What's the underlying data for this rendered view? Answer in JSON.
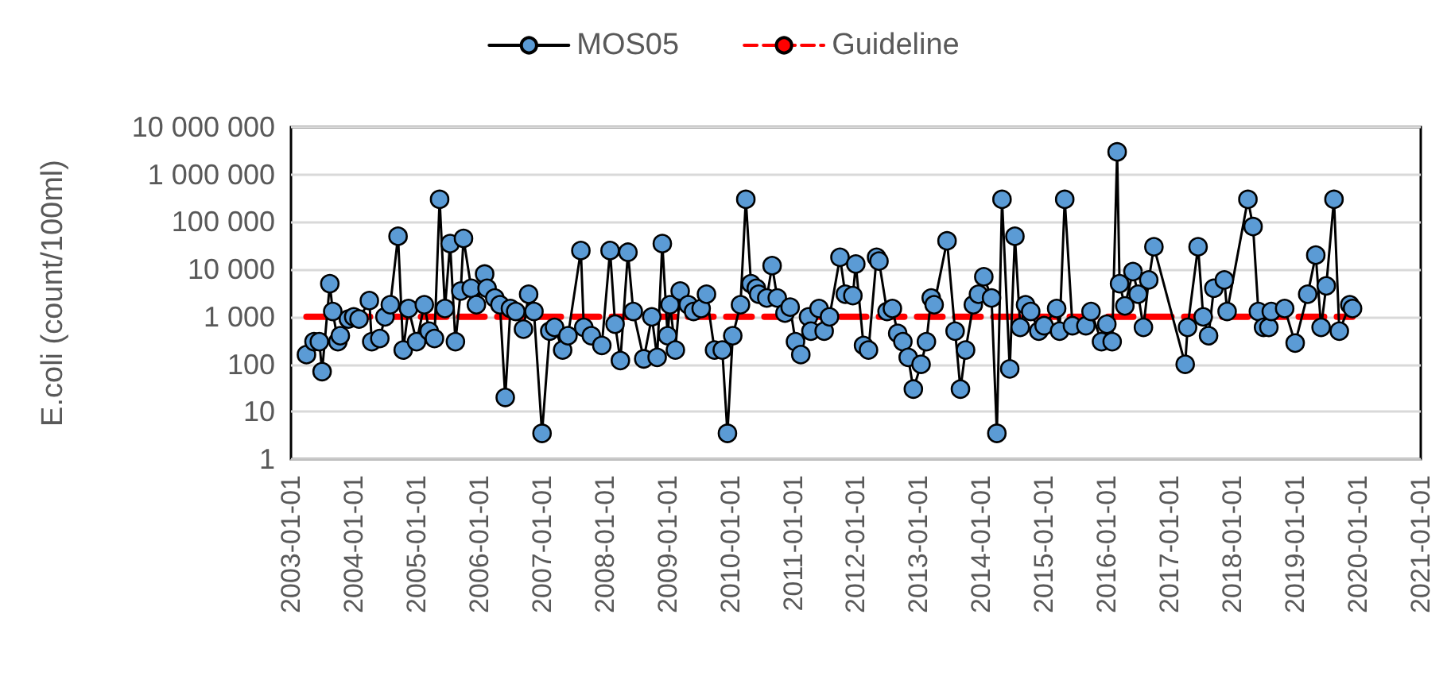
{
  "chart_data": {
    "type": "line",
    "ylabel": "E.coli (count/100ml)",
    "log": "y",
    "grid": "y",
    "legend": "top",
    "marker": "circle",
    "xlim": [
      "2003-01-01",
      "2021-01-01"
    ],
    "xticks": [
      "2003-01-01",
      "2004-01-01",
      "2005-01-01",
      "2006-01-01",
      "2007-01-01",
      "2008-01-01",
      "2009-01-01",
      "2010-01-01",
      "2011-01-01",
      "2012-01-01",
      "2013-01-01",
      "2014-01-01",
      "2015-01-01",
      "2016-01-01",
      "2017-01-01",
      "2018-01-01",
      "2019-01-01",
      "2020-01-01",
      "2021-01-01"
    ],
    "ylim": [
      1,
      10000000
    ],
    "yticks": [
      1,
      10,
      100,
      {
        "value": 1000,
        "label": "1 000"
      },
      {
        "value": 10000,
        "label": "10 000"
      },
      {
        "value": 100000,
        "label": "100 000"
      },
      {
        "value": 1000000,
        "label": "1 000 000"
      },
      {
        "value": 10000000,
        "label": "10 000 000"
      }
    ],
    "series": [
      {
        "name": "MOS05",
        "color": "#5b9bd5",
        "line_style": "solid",
        "x": [
          "2003-04-01",
          "2003-05-15",
          "2003-06-15",
          "2003-07-01",
          "2003-08-15",
          "2003-09-01",
          "2003-10-01",
          "2003-10-15",
          "2003-12-01",
          "2004-01-01",
          "2004-02-01",
          "2004-04-01",
          "2004-04-15",
          "2004-06-01",
          "2004-07-01",
          "2004-08-01",
          "2004-09-15",
          "2004-10-15",
          "2004-11-15",
          "2005-01-01",
          "2005-02-15",
          "2005-03-15",
          "2005-04-15",
          "2005-05-15",
          "2005-06-15",
          "2005-07-15",
          "2005-08-15",
          "2005-09-15",
          "2005-10-01",
          "2005-11-15",
          "2005-12-15",
          "2006-02-01",
          "2006-02-15",
          "2006-04-01",
          "2006-05-01",
          "2006-06-01",
          "2006-07-01",
          "2006-08-01",
          "2006-09-15",
          "2006-10-15",
          "2006-11-15",
          "2007-01-01",
          "2007-02-15",
          "2007-03-15",
          "2007-05-01",
          "2007-06-01",
          "2007-08-15",
          "2007-09-01",
          "2007-10-15",
          "2007-12-15",
          "2008-02-01",
          "2008-03-01",
          "2008-04-01",
          "2008-05-15",
          "2008-06-15",
          "2008-08-15",
          "2008-10-01",
          "2008-11-01",
          "2008-12-01",
          "2009-01-01",
          "2009-01-15",
          "2009-02-15",
          "2009-03-15",
          "2009-05-01",
          "2009-06-01",
          "2009-07-15",
          "2009-08-15",
          "2009-10-01",
          "2009-11-15",
          "2009-12-15",
          "2010-01-15",
          "2010-03-01",
          "2010-04-01",
          "2010-05-01",
          "2010-06-01",
          "2010-06-15",
          "2010-08-01",
          "2010-09-01",
          "2010-10-01",
          "2010-11-15",
          "2010-12-15",
          "2011-01-15",
          "2011-02-15",
          "2011-04-01",
          "2011-04-15",
          "2011-06-01",
          "2011-07-01",
          "2011-08-01",
          "2011-10-01",
          "2011-11-01",
          "2011-12-15",
          "2012-01-01",
          "2012-02-15",
          "2012-03-15",
          "2012-05-01",
          "2012-05-15",
          "2012-07-01",
          "2012-08-01",
          "2012-09-01",
          "2012-10-01",
          "2012-11-01",
          "2012-12-01",
          "2013-01-15",
          "2013-02-15",
          "2013-03-15",
          "2013-04-01",
          "2013-06-15",
          "2013-08-01",
          "2013-09-01",
          "2013-10-01",
          "2013-11-15",
          "2013-12-15",
          "2014-01-15",
          "2014-03-01",
          "2014-04-01",
          "2014-05-01",
          "2014-06-15",
          "2014-07-15",
          "2014-08-15",
          "2014-09-15",
          "2014-10-15",
          "2014-12-01",
          "2015-01-01",
          "2015-03-15",
          "2015-04-01",
          "2015-05-01",
          "2015-06-15",
          "2015-09-01",
          "2015-10-01",
          "2015-12-01",
          "2016-01-01",
          "2016-02-01",
          "2016-03-01",
          "2016-03-15",
          "2016-04-15",
          "2016-06-01",
          "2016-07-01",
          "2016-08-01",
          "2016-09-01",
          "2016-10-01",
          "2017-04-01",
          "2017-04-15",
          "2017-06-15",
          "2017-07-15",
          "2017-08-15",
          "2017-09-15",
          "2017-11-15",
          "2017-12-01",
          "2018-04-01",
          "2018-05-01",
          "2018-06-01",
          "2018-07-01",
          "2018-08-01",
          "2018-08-15",
          "2018-11-01",
          "2019-01-01",
          "2019-03-15",
          "2019-05-01",
          "2019-06-01",
          "2019-07-01",
          "2019-08-15",
          "2019-09-15",
          "2019-11-15",
          "2019-12-01"
        ],
        "values": [
          160,
          300,
          300,
          70,
          5000,
          1300,
          300,
          400,
          900,
          1000,
          900,
          2200,
          300,
          350,
          1000,
          1800,
          50000,
          200,
          1500,
          300,
          1800,
          500,
          350,
          300000,
          1500,
          35000,
          300,
          3500,
          45000,
          4000,
          1800,
          8000,
          4000,
          2500,
          1800,
          20,
          1500,
          1300,
          550,
          3000,
          1300,
          3.5,
          500,
          600,
          200,
          400,
          25000,
          600,
          400,
          250,
          25000,
          700,
          120,
          23000,
          1300,
          130,
          1000,
          140,
          35000,
          400,
          1800,
          200,
          3500,
          1800,
          1300,
          1500,
          3000,
          200,
          200,
          3.5,
          400,
          1800,
          300000,
          5000,
          4000,
          3000,
          2500,
          12000,
          2500,
          1200,
          1600,
          300,
          160,
          1000,
          500,
          1500,
          500,
          1000,
          18000,
          3000,
          2800,
          13000,
          250,
          200,
          18000,
          15000,
          1300,
          1500,
          450,
          300,
          140,
          30,
          100,
          300,
          2500,
          1800,
          40000,
          500,
          30,
          200,
          1800,
          3000,
          7000,
          2500,
          3.5,
          300000,
          80,
          50000,
          600,
          1800,
          1300,
          500,
          650,
          1500,
          500,
          300000,
          650,
          650,
          1300,
          300,
          700,
          300,
          3000000,
          5000,
          1700,
          9000,
          3000,
          600,
          6000,
          30000,
          100,
          600,
          30000,
          1000,
          400,
          4000,
          6000,
          1300,
          300000,
          80000,
          1300,
          600,
          600,
          1300,
          1500,
          280,
          3000,
          20000,
          600,
          4500,
          300000,
          500,
          1800,
          1500
        ]
      },
      {
        "name": "Guideline",
        "color": "#ff0000",
        "line_style": "dashed",
        "marker": "none",
        "x": [
          "2003-04-01",
          "2019-12-01"
        ],
        "values": [
          1000,
          1000
        ]
      }
    ]
  }
}
